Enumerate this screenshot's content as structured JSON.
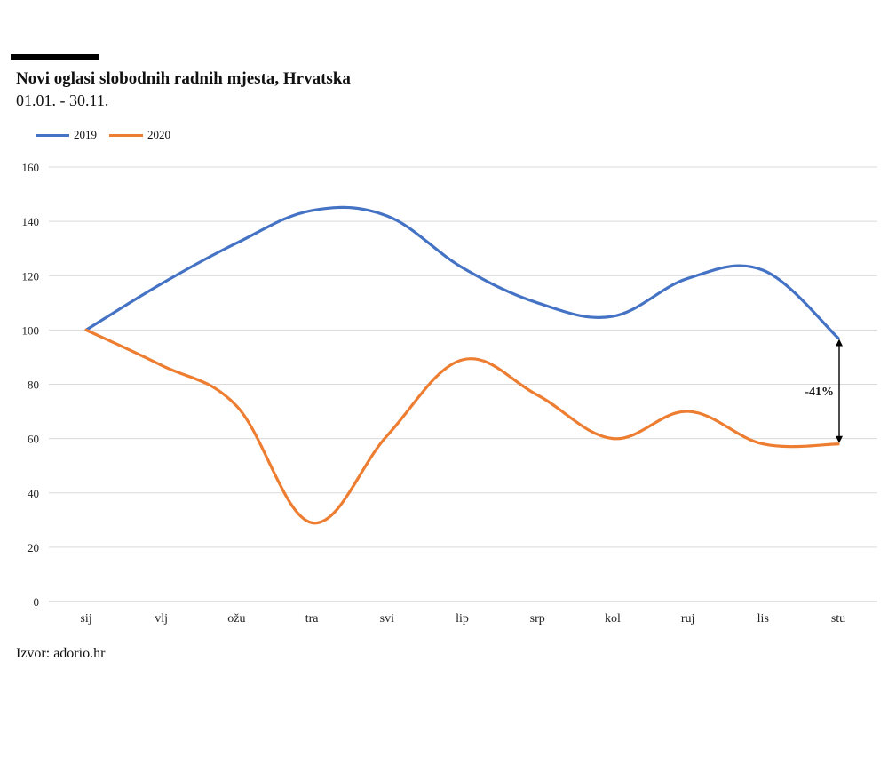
{
  "header": {
    "title": "Novi oglasi slobodnih radnih mjesta, Hrvatska",
    "subtitle": "01.01. - 30.11."
  },
  "source": "Izvor: adorio.hr",
  "chart_data": {
    "type": "line",
    "categories": [
      "sij",
      "vlj",
      "ožu",
      "tra",
      "svi",
      "lip",
      "srp",
      "kol",
      "ruj",
      "lis",
      "stu"
    ],
    "series": [
      {
        "name": "2019",
        "color": "#4472C4",
        "values": [
          100,
          117,
          132,
          144,
          142,
          123,
          110,
          105,
          119,
          122,
          97
        ]
      },
      {
        "name": "2020",
        "color": "#ED7D31",
        "values": [
          100,
          87,
          72,
          29,
          61,
          89,
          76,
          60,
          70,
          58,
          58
        ]
      }
    ],
    "ylim": [
      0,
      160
    ],
    "yticks": [
      0,
      20,
      40,
      60,
      80,
      100,
      120,
      140,
      160
    ],
    "grid": true,
    "legend_position": "top-left",
    "annotation": {
      "text": "-41%",
      "category": "stu",
      "from": 97,
      "to": 58
    }
  }
}
